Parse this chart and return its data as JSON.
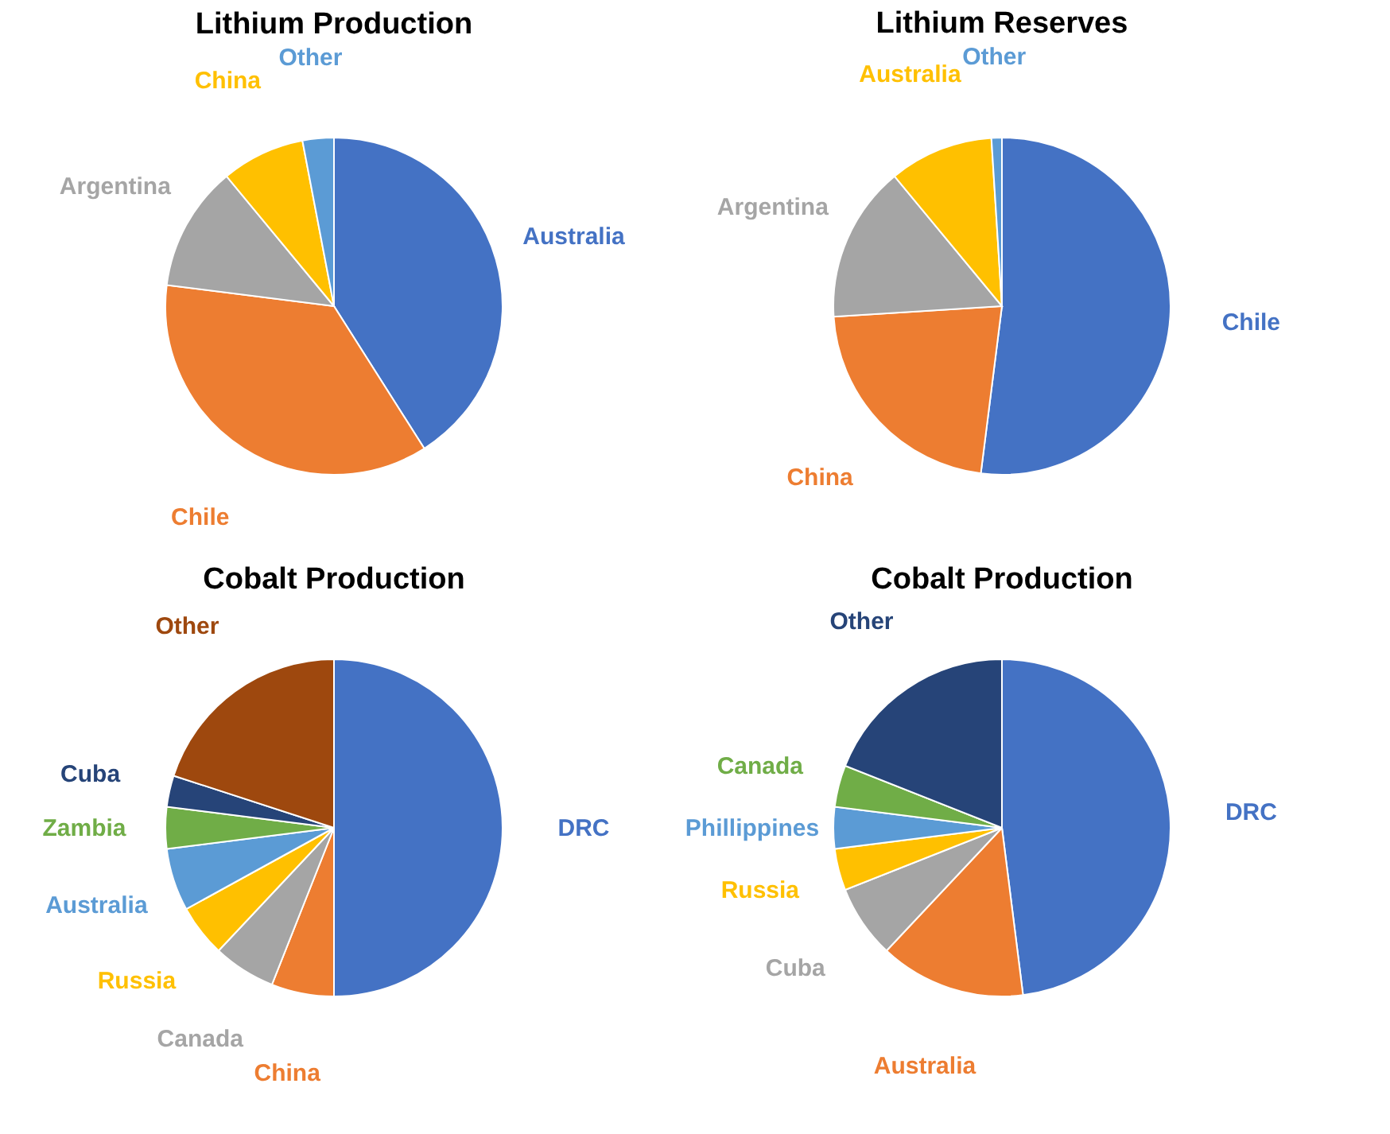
{
  "chart_data": [
    {
      "type": "pie",
      "title": "Lithium Production",
      "categories": [
        "Australia",
        "Chile",
        "Argentina",
        "China",
        "Other"
      ],
      "values": [
        41,
        36,
        12,
        8,
        3
      ],
      "colors": [
        "#4472c4",
        "#ed7d31",
        "#a5a5a5",
        "#ffc000",
        "#5b9bd5"
      ]
    },
    {
      "type": "pie",
      "title": "Lithium Reserves",
      "categories": [
        "Chile",
        "China",
        "Argentina",
        "Australia",
        "Other"
      ],
      "values": [
        52,
        22,
        15,
        10,
        1
      ],
      "colors": [
        "#4472c4",
        "#ed7d31",
        "#a5a5a5",
        "#ffc000",
        "#5b9bd5"
      ]
    },
    {
      "type": "pie",
      "title": "Cobalt Production",
      "categories": [
        "DRC",
        "China",
        "Canada",
        "Russia",
        "Australia",
        "Zambia",
        "Cuba",
        "Other"
      ],
      "values": [
        50,
        6,
        6,
        5,
        6,
        4,
        3,
        20
      ],
      "colors": [
        "#4472c4",
        "#ed7d31",
        "#a5a5a5",
        "#ffc000",
        "#5b9bd5",
        "#70ad47",
        "#264478",
        "#9e480e"
      ]
    },
    {
      "type": "pie",
      "title": "Cobalt Production",
      "categories": [
        "DRC",
        "Australia",
        "Cuba",
        "Russia",
        "Phillippines",
        "Canada",
        "Other"
      ],
      "values": [
        48,
        14,
        7,
        4,
        4,
        4,
        19
      ],
      "colors": [
        "#4472c4",
        "#ed7d31",
        "#a5a5a5",
        "#ffc000",
        "#5b9bd5",
        "#70ad47",
        "#264478"
      ]
    }
  ]
}
